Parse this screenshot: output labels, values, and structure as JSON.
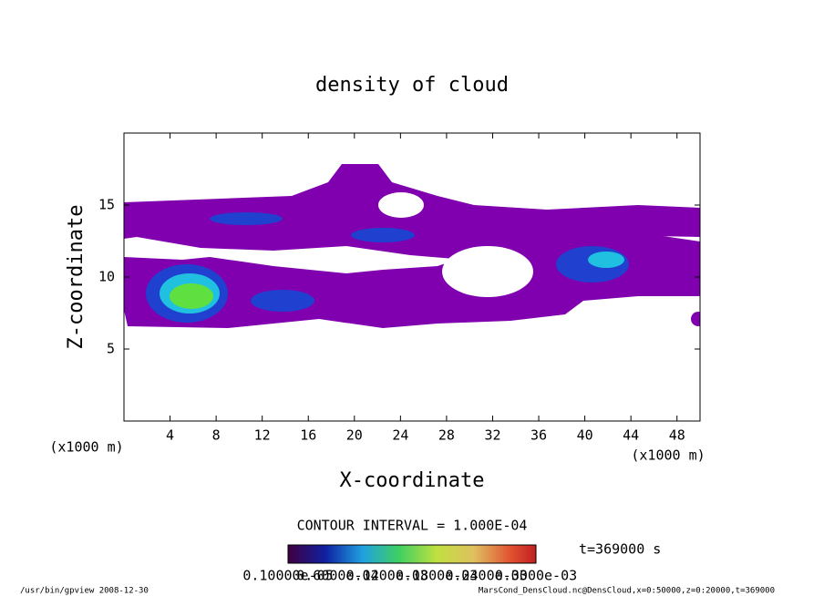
{
  "chart_data": {
    "type": "contour",
    "title": "density of cloud",
    "xlabel": "X-coordinate",
    "ylabel": "Z-coordinate",
    "xunit": "(x1000 m)",
    "xlim": [
      0,
      50
    ],
    "xticks": [
      4,
      8,
      12,
      16,
      20,
      24,
      28,
      32,
      36,
      40,
      44,
      48
    ],
    "ylim": [
      0,
      20
    ],
    "yticks": [
      5,
      10,
      15
    ],
    "contour_interval": "CONTOUR INTERVAL = 1.000E-04",
    "time": "t=369000 s",
    "colorbar_labels": [
      "0.10000e-05",
      "0.6000e-04",
      "0.1200e-03",
      "0.1800e-03",
      "0.2400e-03",
      "0.3000e-03"
    ],
    "footer_left": "/usr/bin/gpview   2008-12-30",
    "footer_right": "MarsCond_DensCloud.nc@DensCloud,x=0:50000,z=0:20000,t=369000"
  }
}
